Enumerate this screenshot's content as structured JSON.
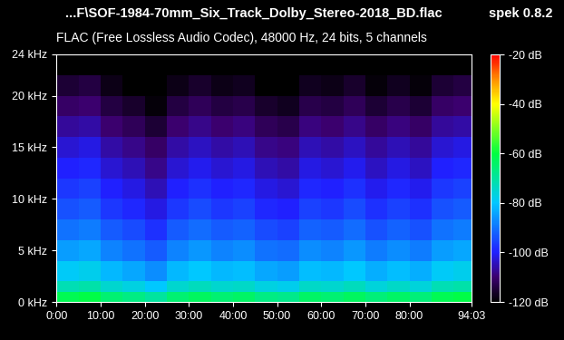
{
  "chart_data": {
    "type": "heatmap",
    "title": "...F\\SOF-1984-70mm_Six_Track_Dolby_Stereo-2018_BD.flac",
    "subtitle": "FLAC (Free Lossless Audio Codec), 48000 Hz, 24 bits, 5 channels",
    "annotations": [
      "spek 0.8.2"
    ],
    "time_edges": [
      0,
      5,
      10,
      15,
      20,
      25,
      30,
      35,
      40,
      45,
      50,
      55,
      60,
      65,
      70,
      75,
      80,
      85,
      90,
      94.05
    ],
    "freq_edges": [
      0,
      1,
      2,
      4,
      6,
      8,
      10,
      12,
      14,
      16,
      18,
      20,
      22,
      24
    ],
    "cells": [
      [
        -62,
        -61,
        -65,
        -67,
        -70,
        -65,
        -63,
        -65,
        -64,
        -67,
        -68,
        -64,
        -65,
        -63,
        -66,
        -64,
        -66,
        -62,
        -61
      ],
      [
        -72,
        -71,
        -75,
        -77,
        -80,
        -75,
        -73,
        -75,
        -74,
        -77,
        -78,
        -74,
        -75,
        -73,
        -76,
        -74,
        -76,
        -72,
        -71
      ],
      [
        -79,
        -78,
        -82,
        -84,
        -87,
        -82,
        -80,
        -82,
        -81,
        -84,
        -85,
        -81,
        -82,
        -80,
        -83,
        -81,
        -83,
        -79,
        -78
      ],
      [
        -85,
        -84,
        -88,
        -90,
        -93,
        -88,
        -86,
        -88,
        -87,
        -90,
        -91,
        -87,
        -88,
        -86,
        -89,
        -87,
        -89,
        -85,
        -84
      ],
      [
        -90,
        -89,
        -93,
        -95,
        -98,
        -93,
        -91,
        -93,
        -92,
        -95,
        -96,
        -92,
        -93,
        -91,
        -94,
        -92,
        -94,
        -90,
        -89
      ],
      [
        -94,
        -93,
        -97,
        -99,
        -102,
        -97,
        -95,
        -97,
        -96,
        -99,
        -100,
        -96,
        -97,
        -95,
        -98,
        -96,
        -98,
        -94,
        -93
      ],
      [
        -97,
        -96,
        -100,
        -102,
        -105,
        -100,
        -98,
        -100,
        -99,
        -102,
        -103,
        -99,
        -100,
        -98,
        -101,
        -99,
        -101,
        -97,
        -96
      ],
      [
        -100,
        -99,
        -103,
        -105,
        -108,
        -103,
        -101,
        -103,
        -102,
        -105,
        -106,
        -102,
        -103,
        -101,
        -104,
        -102,
        -104,
        -100,
        -99
      ],
      [
        -103,
        -102,
        -106,
        -108,
        -111,
        -106,
        -104,
        -106,
        -105,
        -108,
        -109,
        -105,
        -106,
        -104,
        -107,
        -105,
        -107,
        -103,
        -102
      ],
      [
        -107,
        -106,
        -110,
        -112,
        -115,
        -110,
        -108,
        -110,
        -109,
        -112,
        -113,
        -109,
        -110,
        -108,
        -111,
        -109,
        -111,
        -107,
        -106
      ],
      [
        -111,
        -110,
        -114,
        -116,
        -119,
        -114,
        -112,
        -114,
        -113,
        -116,
        -117,
        -113,
        -114,
        -112,
        -115,
        -113,
        -115,
        -111,
        -110
      ],
      [
        -115,
        -114,
        -118,
        -120,
        -120,
        -118,
        -116,
        -118,
        -117,
        -120,
        -120,
        -117,
        -118,
        -116,
        -119,
        -117,
        -119,
        -115,
        -114
      ],
      [
        -120,
        -120,
        -120,
        -120,
        -120,
        -120,
        -120,
        -120,
        -120,
        -120,
        -120,
        -120,
        -120,
        -120,
        -120,
        -120,
        -120,
        -120,
        -120
      ]
    ],
    "xlim": [
      0,
      94.05
    ],
    "xticks": [
      {
        "value": 0,
        "label": "0:00"
      },
      {
        "value": 10,
        "label": "10:00"
      },
      {
        "value": 20,
        "label": "20:00"
      },
      {
        "value": 30,
        "label": "30:00"
      },
      {
        "value": 40,
        "label": "40:00"
      },
      {
        "value": 50,
        "label": "50:00"
      },
      {
        "value": 60,
        "label": "60:00"
      },
      {
        "value": 70,
        "label": "70:00"
      },
      {
        "value": 80,
        "label": "80:00"
      },
      {
        "value": 94.05,
        "label": "94:03"
      }
    ],
    "ylim": [
      0,
      24
    ],
    "yticks": [
      {
        "value": 0,
        "label": "0 kHz"
      },
      {
        "value": 5,
        "label": "5 kHz"
      },
      {
        "value": 10,
        "label": "10 kHz"
      },
      {
        "value": 15,
        "label": "15 kHz"
      },
      {
        "value": 20,
        "label": "20 kHz"
      },
      {
        "value": 24,
        "label": "24 kHz"
      }
    ],
    "colorbar_range": [
      -120,
      -20
    ],
    "colorbar_ticks": [
      {
        "value": -20,
        "label": "-20 dB"
      },
      {
        "value": -40,
        "label": "-40 dB"
      },
      {
        "value": -60,
        "label": "-60 dB"
      },
      {
        "value": -80,
        "label": "-80 dB"
      },
      {
        "value": -100,
        "label": "-100 dB"
      },
      {
        "value": -120,
        "label": "-120 dB"
      }
    ],
    "grid": false
  }
}
